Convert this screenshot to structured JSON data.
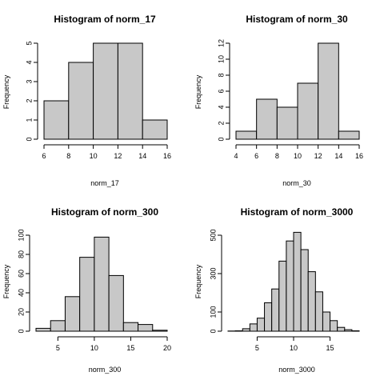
{
  "chart_data": [
    {
      "type": "bar",
      "title": "Histogram of norm_17",
      "xlabel": "norm_17",
      "ylabel": "Frequency",
      "breaks": [
        6,
        8,
        10,
        12,
        14,
        16
      ],
      "values": [
        2,
        4,
        5,
        5,
        1
      ],
      "xlim": [
        6,
        16
      ],
      "ylim": [
        0,
        5
      ],
      "xticks": [
        6,
        8,
        10,
        12,
        14,
        16
      ],
      "yticks": [
        0,
        1,
        2,
        3,
        4,
        5
      ],
      "bar_color": "#c8c8c8"
    },
    {
      "type": "bar",
      "title": "Histogram of norm_30",
      "xlabel": "norm_30",
      "ylabel": "Frequency",
      "breaks": [
        4,
        6,
        8,
        10,
        12,
        14,
        16
      ],
      "values": [
        1,
        5,
        4,
        7,
        12,
        1
      ],
      "xlim": [
        4,
        16
      ],
      "ylim": [
        0,
        12
      ],
      "xticks": [
        4,
        6,
        8,
        10,
        12,
        14,
        16
      ],
      "yticks": [
        0,
        2,
        4,
        6,
        8,
        10,
        12
      ],
      "bar_color": "#c8c8c8"
    },
    {
      "type": "bar",
      "title": "Histogram of norm_300",
      "xlabel": "norm_300",
      "ylabel": "Frequency",
      "breaks": [
        2,
        4,
        6,
        8,
        10,
        12,
        14,
        16,
        18,
        20
      ],
      "values": [
        3,
        11,
        36,
        77,
        98,
        58,
        9,
        7,
        1
      ],
      "xlim": [
        2,
        20
      ],
      "ylim": [
        0,
        100
      ],
      "xticks": [
        5,
        10,
        15,
        20
      ],
      "yticks": [
        0,
        20,
        40,
        60,
        80,
        100
      ],
      "bar_color": "#c8c8c8"
    },
    {
      "type": "bar",
      "title": "Histogram of norm_3000",
      "xlabel": "norm_3000",
      "ylabel": "Frequency",
      "breaks": [
        1,
        2,
        3,
        4,
        5,
        6,
        7,
        8,
        9,
        10,
        11,
        12,
        13,
        14,
        15,
        16,
        17,
        18,
        19
      ],
      "values": [
        1,
        2,
        13,
        38,
        68,
        148,
        220,
        365,
        470,
        515,
        425,
        310,
        205,
        100,
        55,
        20,
        8,
        2
      ],
      "xlim": [
        1,
        19
      ],
      "ylim": [
        0,
        500
      ],
      "xticks": [
        5,
        10,
        15
      ],
      "yticks": [
        0,
        100,
        300,
        500
      ],
      "bar_color": "#c8c8c8"
    }
  ]
}
